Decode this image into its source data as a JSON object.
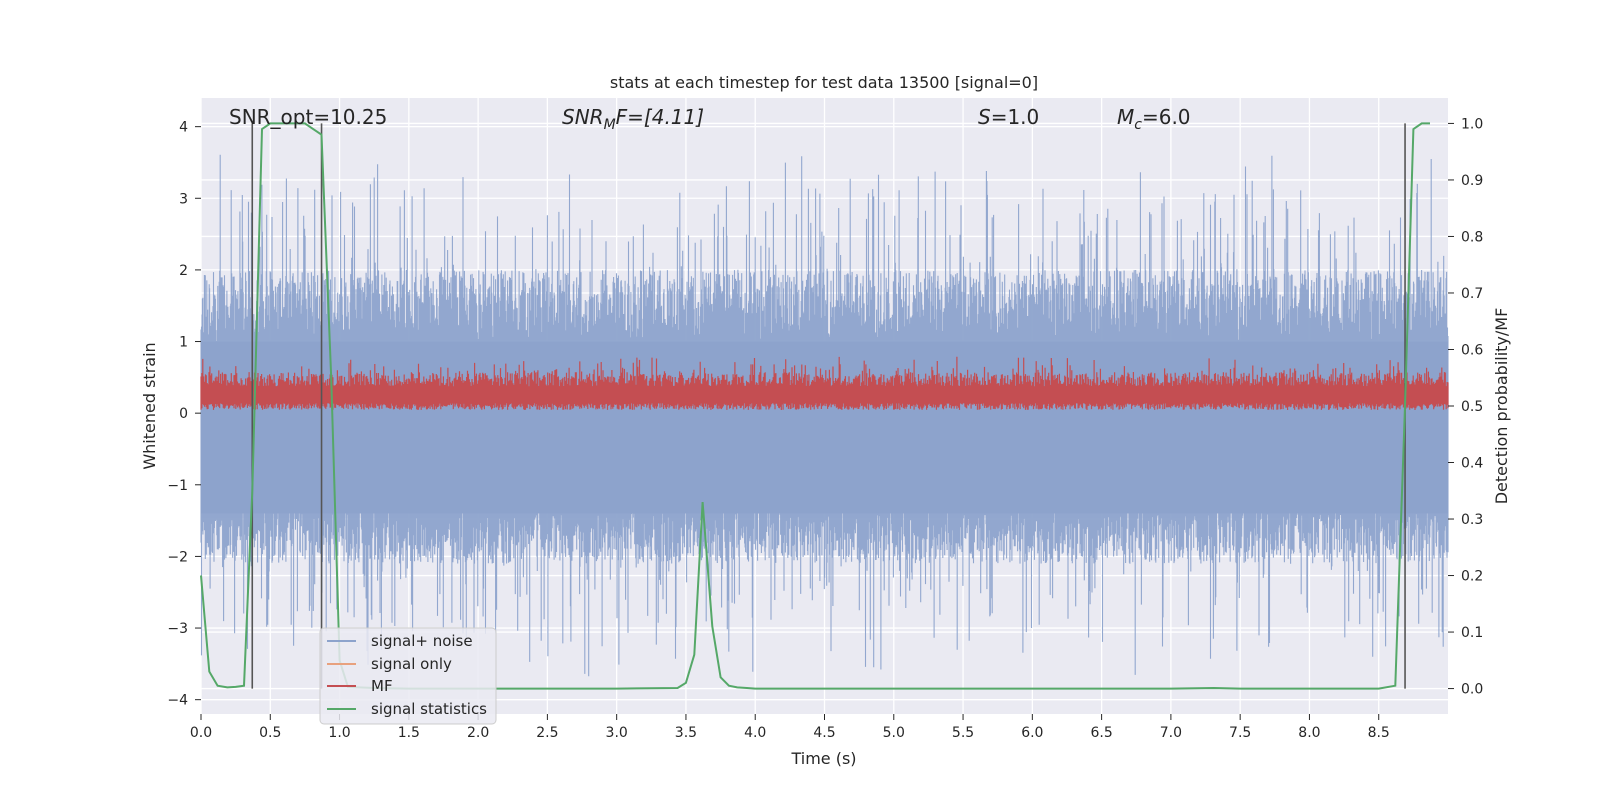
{
  "chart_data": {
    "type": "line",
    "title": "stats at each timestep for test data 13500 [signal=0]",
    "xlabel": "Time (s)",
    "ylabel": "Whitened strain",
    "ylabel_right": "Detection probability/MF",
    "xlim": [
      0.0,
      9.0
    ],
    "ylim": [
      -4.2,
      4.4
    ],
    "ylim_right": [
      -0.045,
      1.045
    ],
    "x_ticks": [
      "0.0",
      "0.5",
      "1.0",
      "1.5",
      "2.0",
      "2.5",
      "3.0",
      "3.5",
      "4.0",
      "4.5",
      "5.0",
      "5.5",
      "6.0",
      "6.5",
      "7.0",
      "7.5",
      "8.0",
      "8.5"
    ],
    "y_ticks": [
      "−4",
      "−3",
      "−2",
      "−1",
      "0",
      "1",
      "2",
      "3",
      "4"
    ],
    "y_ticks_right": [
      "0.0",
      "0.1",
      "0.2",
      "0.3",
      "0.4",
      "0.5",
      "0.6",
      "0.7",
      "0.8",
      "0.9",
      "1.0"
    ],
    "annotations": {
      "snr_opt": "SNR_opt=10.25",
      "snr_mf_main": "SNR",
      "snr_mf_sub": "M",
      "snr_mf_rest": "F=[4.11]",
      "s_main": "S",
      "s_rest": "=1.0",
      "mc_main": "M",
      "mc_sub": "c",
      "mc_rest": "=6.0"
    },
    "grid": true,
    "legend_position": "lower-left",
    "legend": [
      "signal+ noise",
      "signal only",
      "MF",
      "signal statistics"
    ],
    "series": [
      {
        "name": "signal+ noise",
        "axis": "left",
        "color": "#8da3cc",
        "description_range": [
          -3.8,
          3.8
        ]
      },
      {
        "name": "signal only",
        "axis": "left",
        "color": "#e8a17e",
        "values": []
      },
      {
        "name": "MF",
        "axis": "right",
        "color": "#c44e52",
        "description_range": [
          0.49,
          0.6
        ]
      },
      {
        "name": "signal statistics",
        "axis": "right",
        "color": "#55a868",
        "x": [
          0.0,
          0.06,
          0.12,
          0.19,
          0.25,
          0.31,
          0.37,
          0.44,
          0.5,
          0.56,
          0.62,
          0.69,
          0.75,
          0.81,
          0.87,
          0.94,
          1.0,
          1.06,
          1.25,
          1.5,
          2.0,
          2.5,
          3.0,
          3.44,
          3.5,
          3.56,
          3.62,
          3.69,
          3.75,
          3.81,
          3.87,
          3.94,
          4.0,
          5.0,
          6.0,
          7.0,
          7.31,
          7.5,
          8.0,
          8.5,
          8.62,
          8.69,
          8.75,
          8.81,
          8.87
        ],
        "values": [
          0.2,
          0.03,
          0.005,
          0.002,
          0.003,
          0.005,
          0.35,
          0.99,
          1.0,
          1.0,
          1.0,
          1.0,
          1.0,
          0.99,
          0.98,
          0.55,
          0.05,
          0.003,
          0.001,
          0.0,
          0.0,
          0.0,
          0.0,
          0.001,
          0.01,
          0.06,
          0.33,
          0.11,
          0.02,
          0.005,
          0.002,
          0.001,
          0.0,
          0.0,
          0.0,
          0.0,
          0.001,
          0.0,
          0.0,
          0.0,
          0.005,
          0.5,
          0.99,
          1.0,
          1.0
        ]
      }
    ],
    "vlines_right_axis": [
      {
        "x": 0.37,
        "y": [
          0.0,
          1.0
        ]
      },
      {
        "x": 0.87,
        "y": [
          0.0,
          1.0
        ]
      },
      {
        "x": 8.69,
        "y": [
          0.0,
          1.0
        ]
      }
    ]
  }
}
